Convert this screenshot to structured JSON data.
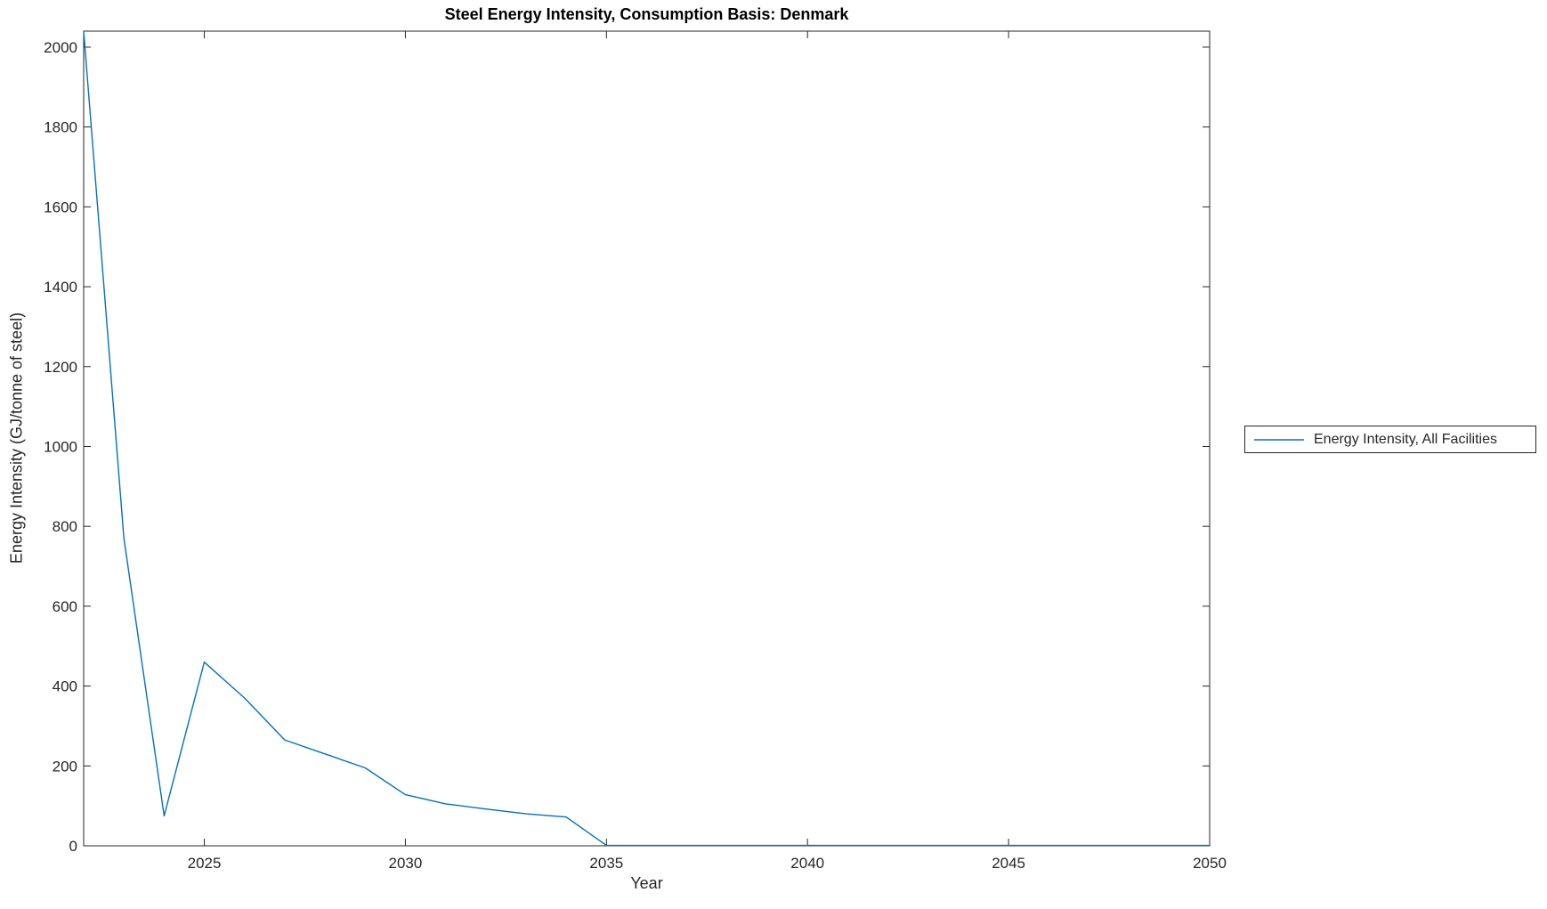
{
  "window": {
    "background": "#FFFFFF"
  },
  "colors": {
    "line": "#0072BD",
    "axis": "#262626",
    "tick_label": "#262626",
    "title": "#000000",
    "background": "#FFFFFF"
  },
  "chart_data": {
    "type": "line",
    "title": "Steel Energy Intensity, Consumption Basis: Denmark",
    "xlabel": "Year",
    "ylabel": "Energy Intensity (GJ/tonne of steel)",
    "xlim": [
      2022,
      2050
    ],
    "ylim": [
      0,
      2040
    ],
    "xticks": [
      2025,
      2030,
      2035,
      2040,
      2045,
      2050
    ],
    "yticks": [
      0,
      200,
      400,
      600,
      800,
      1000,
      1200,
      1400,
      1600,
      1800,
      2000
    ],
    "grid": false,
    "legend_position": "outside-right",
    "series": [
      {
        "name": "Energy Intensity, All Facilities",
        "color": "#0072BD",
        "x": [
          2022,
          2023,
          2024,
          2025,
          2026,
          2027,
          2028,
          2029,
          2030,
          2031,
          2032,
          2033,
          2034,
          2035,
          2036,
          2037,
          2038,
          2039,
          2040,
          2041,
          2042,
          2043,
          2044,
          2045,
          2046,
          2047,
          2048,
          2049,
          2050
        ],
        "y": [
          2040,
          770,
          75,
          460,
          370,
          265,
          230,
          195,
          128,
          105,
          92,
          80,
          72,
          1,
          1,
          1,
          1,
          1,
          1,
          1,
          1,
          1,
          1,
          1,
          1,
          1,
          1,
          1,
          1
        ]
      }
    ]
  }
}
